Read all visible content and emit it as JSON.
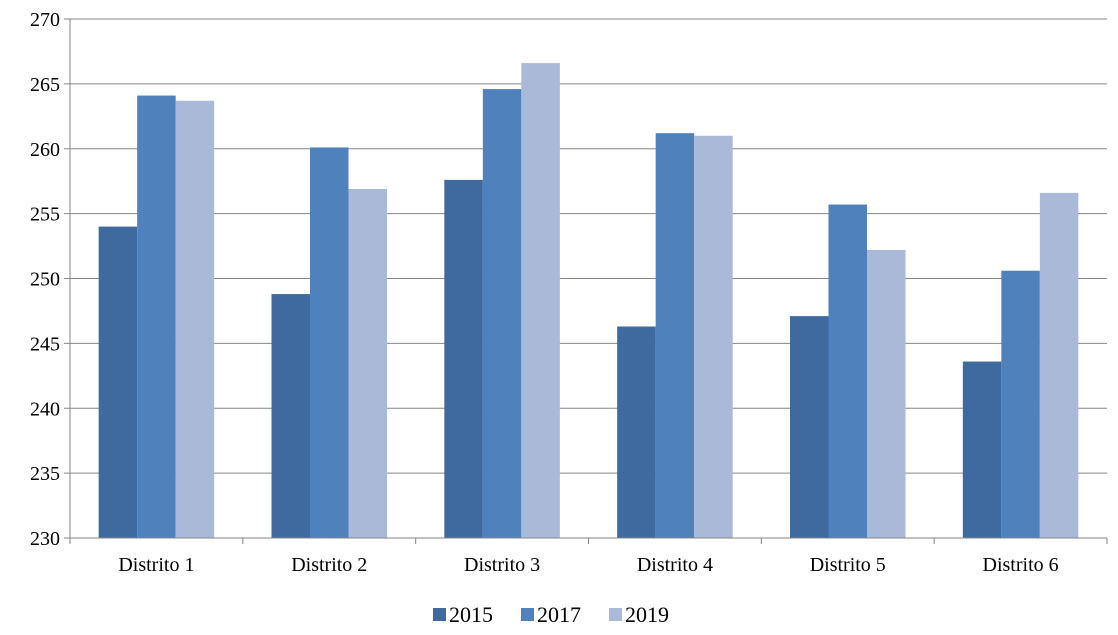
{
  "chart_data": {
    "type": "bar",
    "categories": [
      "Distrito 1",
      "Distrito 2",
      "Distrito 3",
      "Distrito 4",
      "Distrito 5",
      "Distrito 6"
    ],
    "series": [
      {
        "name": "2015",
        "color": "#3f6a9f",
        "values": [
          254.0,
          248.8,
          257.6,
          246.3,
          247.1,
          243.6
        ]
      },
      {
        "name": "2017",
        "color": "#4f81bd",
        "values": [
          264.1,
          260.1,
          264.6,
          261.2,
          255.7,
          250.6
        ]
      },
      {
        "name": "2019",
        "color": "#aab9d8",
        "values": [
          263.7,
          256.9,
          266.6,
          261.0,
          252.2,
          256.6
        ]
      }
    ],
    "ylim": [
      230,
      270
    ],
    "yticks": [
      "230",
      "235",
      "240",
      "245",
      "250",
      "255",
      "260",
      "265",
      "270"
    ],
    "grid": true,
    "legend_position": "bottom",
    "title": "",
    "xlabel": "",
    "ylabel": ""
  }
}
